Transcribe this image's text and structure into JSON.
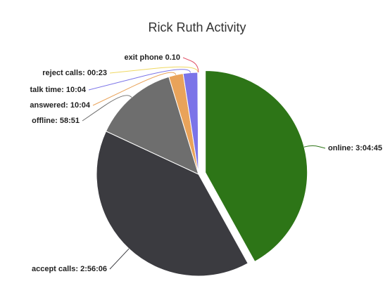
{
  "chart_data": {
    "type": "pie",
    "title": "Rick Ruth Activity",
    "categories": [
      "online: 3:04:45",
      "accept calls: 2:56:06",
      "offline: 58:51",
      "answered: 10:04",
      "talk time: 10:04",
      "reject calls: 00:23",
      "exit phone 0.10"
    ],
    "values": [
      11085,
      10566,
      3531,
      604,
      604,
      23,
      10
    ],
    "colors": [
      "#2d7517",
      "#3b3b40",
      "#6e6e6e",
      "#e9a35a",
      "#7b74e8",
      "#efd862",
      "#e0566a"
    ]
  }
}
